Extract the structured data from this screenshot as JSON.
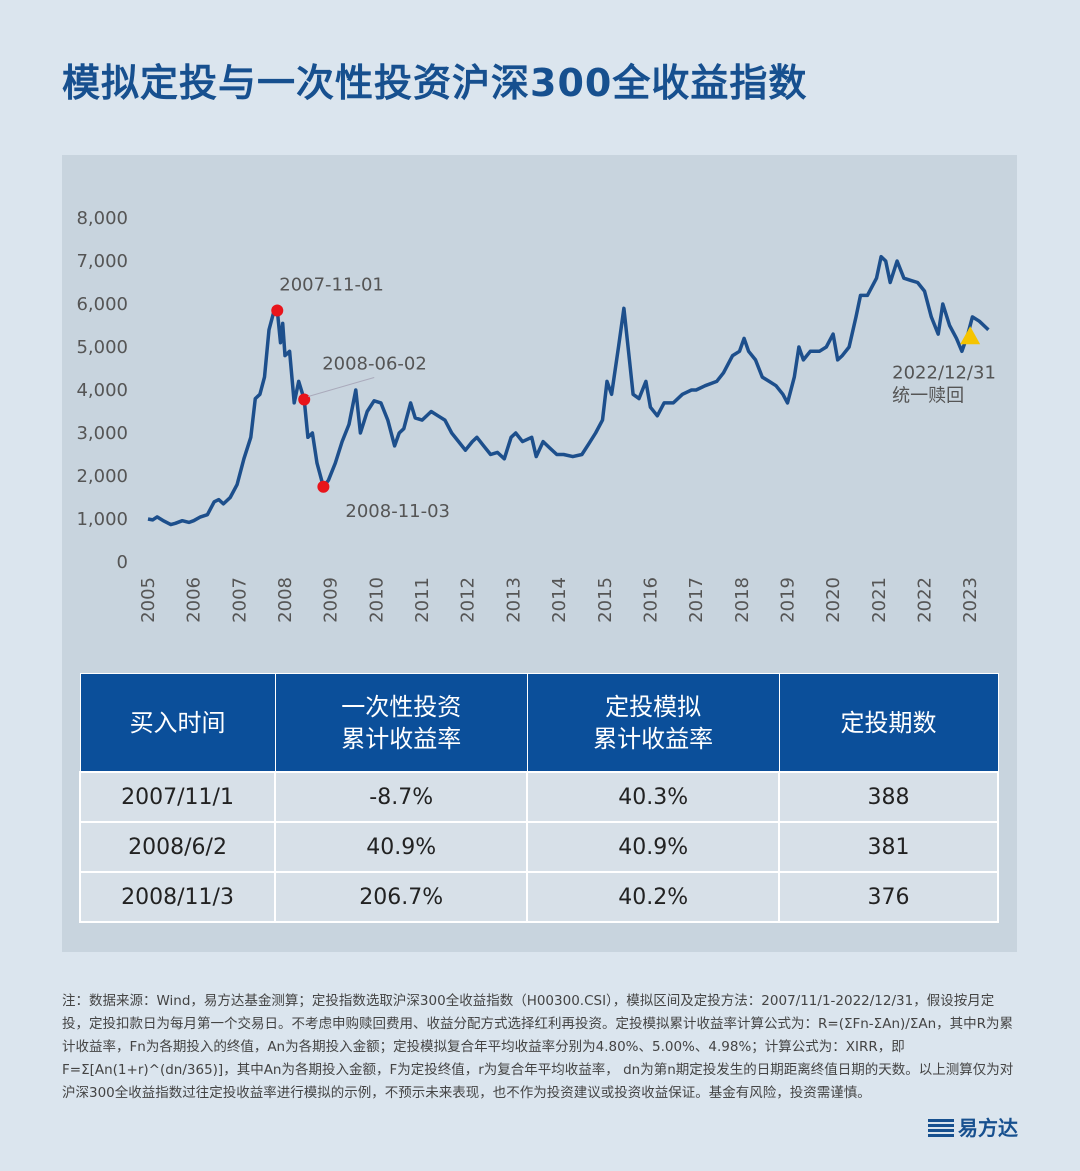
{
  "title": "模拟定投与一次性投资沪深300全收益指数",
  "chart_data": {
    "type": "line",
    "color": "#1d4f8c",
    "x": [
      2005.0,
      2005.1,
      2005.2,
      2005.35,
      2005.5,
      2005.6,
      2005.75,
      2005.9,
      2006.0,
      2006.15,
      2006.3,
      2006.45,
      2006.55,
      2006.65,
      2006.8,
      2006.95,
      2007.1,
      2007.25,
      2007.35,
      2007.45,
      2007.55,
      2007.65,
      2007.75,
      2007.83,
      2007.9,
      2007.95,
      2008.0,
      2008.1,
      2008.2,
      2008.3,
      2008.42,
      2008.5,
      2008.6,
      2008.7,
      2008.84,
      2008.95,
      2009.1,
      2009.25,
      2009.4,
      2009.55,
      2009.65,
      2009.8,
      2009.95,
      2010.1,
      2010.25,
      2010.4,
      2010.5,
      2010.6,
      2010.75,
      2010.85,
      2011.0,
      2011.2,
      2011.35,
      2011.5,
      2011.65,
      2011.8,
      2011.95,
      2012.1,
      2012.2,
      2012.35,
      2012.5,
      2012.65,
      2012.8,
      2012.95,
      2013.05,
      2013.2,
      2013.4,
      2013.5,
      2013.65,
      2013.8,
      2013.95,
      2014.1,
      2014.3,
      2014.5,
      2014.65,
      2014.8,
      2014.95,
      2015.05,
      2015.15,
      2015.3,
      2015.42,
      2015.55,
      2015.62,
      2015.75,
      2015.9,
      2016.0,
      2016.15,
      2016.3,
      2016.5,
      2016.7,
      2016.9,
      2017.0,
      2017.2,
      2017.45,
      2017.6,
      2017.8,
      2017.95,
      2018.05,
      2018.15,
      2018.3,
      2018.45,
      2018.6,
      2018.75,
      2018.9,
      2019.0,
      2019.15,
      2019.25,
      2019.35,
      2019.5,
      2019.7,
      2019.85,
      2020.0,
      2020.1,
      2020.2,
      2020.35,
      2020.5,
      2020.6,
      2020.75,
      2020.95,
      2021.05,
      2021.15,
      2021.25,
      2021.4,
      2021.55,
      2021.7,
      2021.85,
      2022.0,
      2022.15,
      2022.3,
      2022.4,
      2022.55,
      2022.7,
      2022.82,
      2022.95,
      2023.05,
      2023.2,
      2023.35,
      2023.4
    ],
    "values": [
      1000,
      980,
      1050,
      950,
      870,
      900,
      960,
      920,
      960,
      1050,
      1100,
      1400,
      1450,
      1350,
      1500,
      1800,
      2400,
      2900,
      3800,
      3900,
      4300,
      5400,
      5800,
      5850,
      5100,
      5550,
      4800,
      4900,
      3700,
      4200,
      3780,
      2900,
      3000,
      2300,
      1750,
      1900,
      2300,
      2800,
      3200,
      4000,
      3000,
      3500,
      3750,
      3700,
      3300,
      2700,
      3000,
      3100,
      3700,
      3350,
      3300,
      3500,
      3400,
      3300,
      3000,
      2800,
      2600,
      2800,
      2900,
      2700,
      2500,
      2550,
      2400,
      2900,
      3000,
      2800,
      2900,
      2450,
      2800,
      2650,
      2500,
      2500,
      2450,
      2500,
      2750,
      3000,
      3300,
      4200,
      3900,
      5000,
      5900,
      4600,
      3900,
      3800,
      4200,
      3600,
      3400,
      3700,
      3700,
      3900,
      4000,
      4000,
      4100,
      4200,
      4400,
      4800,
      4900,
      5200,
      4900,
      4700,
      4300,
      4200,
      4100,
      3900,
      3700,
      4300,
      5000,
      4700,
      4900,
      4900,
      5000,
      5300,
      4700,
      4800,
      5000,
      5700,
      6200,
      6200,
      6600,
      7100,
      7000,
      6500,
      7000,
      6600,
      6550,
      6500,
      6300,
      5700,
      5300,
      6000,
      5500,
      5200,
      4900,
      5300,
      5700,
      5600,
      5450,
      5400
    ],
    "xlim": [
      2005,
      2023.5
    ],
    "xticks": [
      2005,
      2006,
      2007,
      2008,
      2009,
      2010,
      2011,
      2012,
      2013,
      2014,
      2015,
      2016,
      2017,
      2018,
      2019,
      2020,
      2021,
      2022,
      2023
    ],
    "ylim": [
      0,
      8000
    ],
    "yticks": [
      0,
      {
        "value": 1000,
        "label": "1,000"
      },
      {
        "value": 2000,
        "label": "2,000"
      },
      {
        "value": 3000,
        "label": "3,000"
      },
      {
        "value": 4000,
        "label": "4,000"
      },
      {
        "value": 5000,
        "label": "5,000"
      },
      {
        "value": 6000,
        "label": "6,000"
      },
      {
        "value": 7000,
        "label": "7,000"
      },
      {
        "value": 8000,
        "label": "8,000"
      }
    ],
    "markers": [
      {
        "x": 2007.83,
        "value": 5850,
        "label": "2007-11-01",
        "color": "#e8141b"
      },
      {
        "x": 2008.42,
        "value": 3780,
        "label": "2008-06-02",
        "color": "#e8141b"
      },
      {
        "x": 2008.84,
        "value": 1750,
        "label": "2008-11-03",
        "color": "#e8141b"
      },
      {
        "x": 2023.0,
        "value": 5250,
        "label": [
          "2022/12/31",
          "统一赎回"
        ],
        "color": "#f5c400",
        "shape": "triangle"
      }
    ]
  },
  "table": {
    "headers": [
      [
        "买入时间"
      ],
      [
        "一次性投资",
        "累计收益率"
      ],
      [
        "定投模拟",
        "累计收益率"
      ],
      [
        "定投期数"
      ]
    ],
    "rows": [
      [
        "2007/11/1",
        "-8.7%",
        "40.3%",
        "388"
      ],
      [
        "2008/6/2",
        "40.9%",
        "40.9%",
        "381"
      ],
      [
        "2008/11/3",
        "206.7%",
        "40.2%",
        "376"
      ]
    ]
  },
  "footnote": "注：数据来源：Wind，易方达基金测算；定投指数选取沪深300全收益指数（H00300.CSI），模拟区间及定投方法：2007/11/1-2022/12/31，假设按月定投，定投扣款日为每月第一个交易日。不考虑申购赎回费用、收益分配方式选择红利再投资。定投模拟累计收益率计算公式为：R=(ΣFn-ΣAn)/ΣAn，其中R为累计收益率，Fn为各期投入的终值，An为各期投入金额；定投模拟复合年平均收益率分别为4.80%、5.00%、4.98%；计算公式为：XIRR，即F=Σ[An(1+r)^(dn/365)]，其中An为各期投入金额，F为定投终值，r为复合年平均收益率， dn为第n期定投发生的日期距离终值日期的天数。以上测算仅为对沪深300全收益指数过往定投收益率进行模拟的示例，不预示未来表现，也不作为投资建议或投资收益保证。基金有风险，投资需谨慎。",
  "logo": "易方达"
}
